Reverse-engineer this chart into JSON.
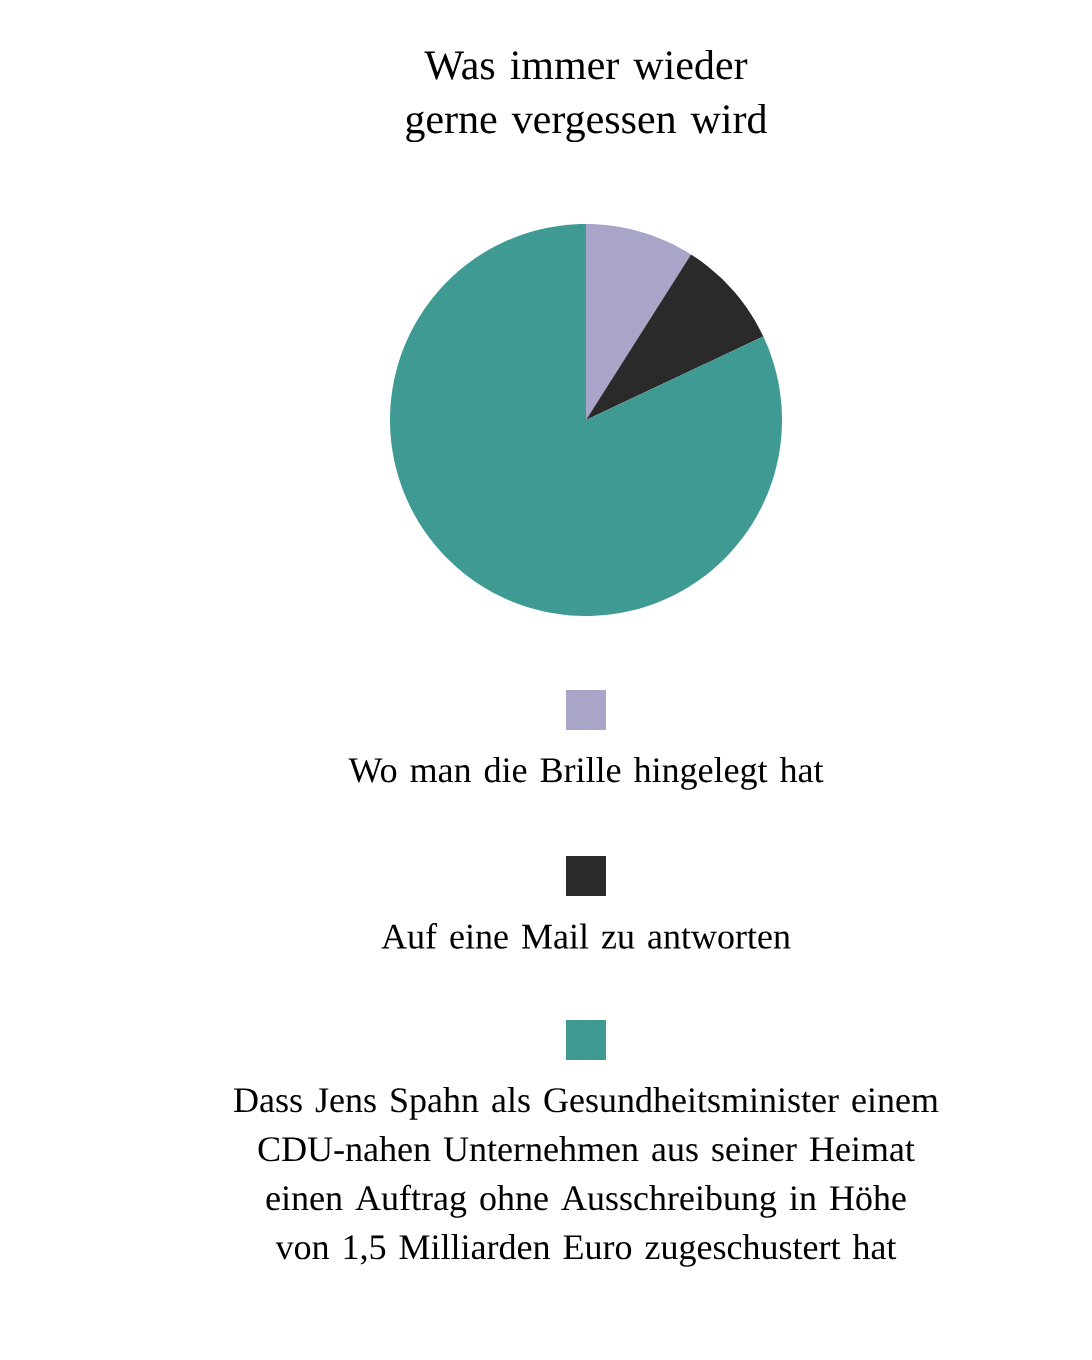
{
  "chart_data": {
    "type": "pie",
    "title": "Was immer wieder gerne vergessen wird",
    "categories": [
      "Wo man die Brille hingelegt hat",
      "Auf eine Mail zu antworten",
      "Dass Jens Spahn als Gesundheitsminister einem CDU-nahen Unternehmen aus seiner Heimat einen Auftrag ohne Ausschreibung in Höhe von 1,5 Milliarden Euro zugeschustert hat"
    ],
    "values": [
      9,
      9,
      82
    ],
    "colors": [
      "#a9a5c8",
      "#2b2a2a",
      "#3e9a93"
    ],
    "legend": "bottom"
  }
}
